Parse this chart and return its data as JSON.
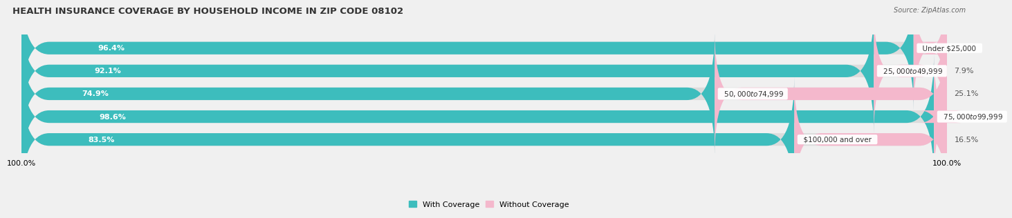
{
  "title": "HEALTH INSURANCE COVERAGE BY HOUSEHOLD INCOME IN ZIP CODE 08102",
  "source": "Source: ZipAtlas.com",
  "categories": [
    "Under $25,000",
    "$25,000 to $49,999",
    "$50,000 to $74,999",
    "$75,000 to $99,999",
    "$100,000 and over"
  ],
  "with_coverage": [
    96.4,
    92.1,
    74.9,
    98.6,
    83.5
  ],
  "without_coverage": [
    3.6,
    7.9,
    25.1,
    1.4,
    16.5
  ],
  "color_with": "#3dbdbd",
  "color_with_light": "#85d5d5",
  "color_without_light": "#f4b8cc",
  "color_without": "#f06090",
  "background_color": "#f0f0f0",
  "bar_bg_color": "#dcdcdc",
  "title_fontsize": 9.5,
  "label_fontsize": 8,
  "bar_height": 0.55,
  "xlim": [
    0,
    100
  ]
}
